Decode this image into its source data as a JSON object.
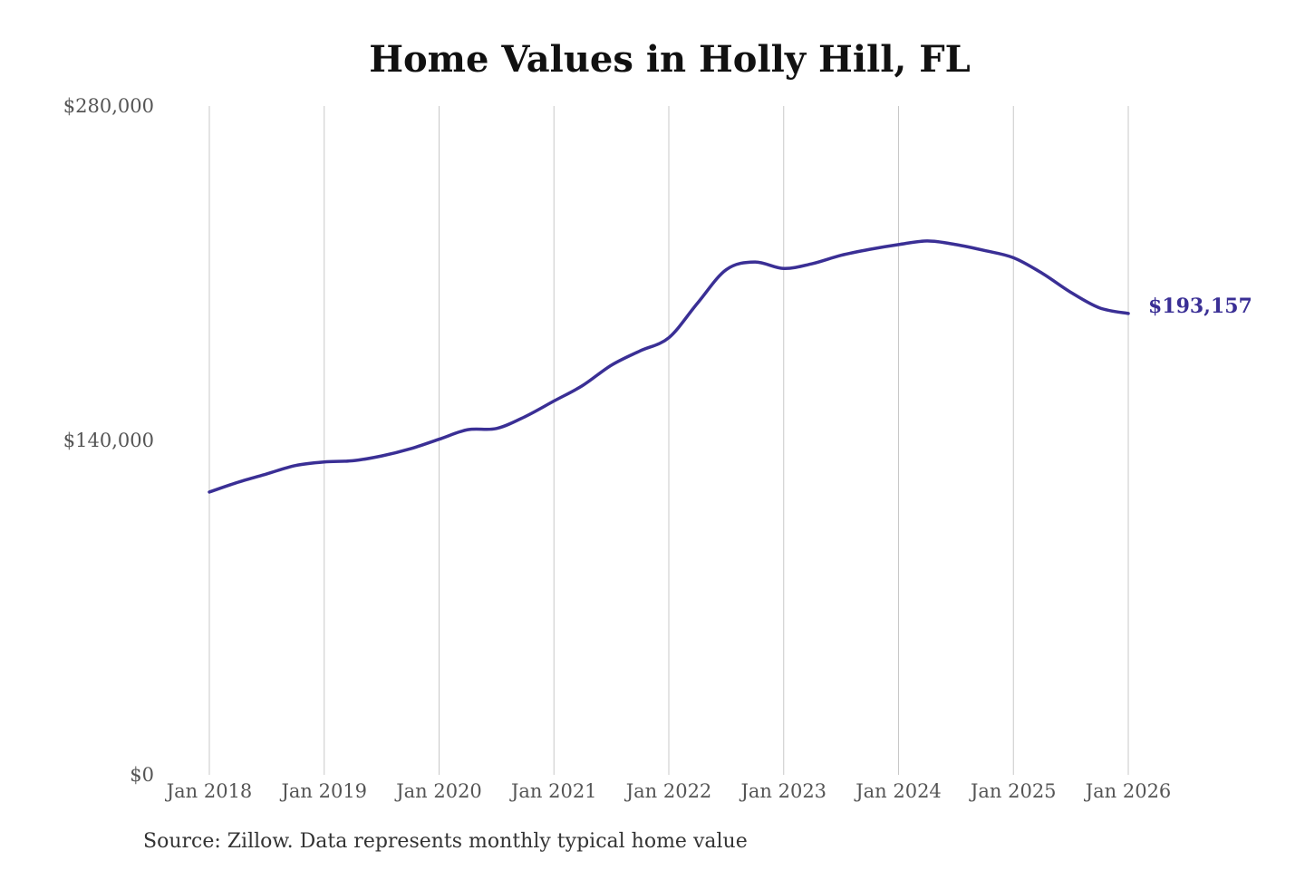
{
  "chart_data": {
    "type": "line",
    "title": "Home Values in Holly Hill, FL",
    "source": "Source: Zillow. Data represents monthly typical home value",
    "xlabel": "",
    "ylabel": "",
    "ylim": [
      0,
      280000
    ],
    "y_ticks": [
      "$0",
      "$140,000",
      "$280,000"
    ],
    "y_tick_values": [
      0,
      140000,
      280000
    ],
    "x_ticks": [
      "Jan 2018",
      "Jan 2019",
      "Jan 2020",
      "Jan 2021",
      "Jan 2022",
      "Jan 2023",
      "Jan 2024",
      "Jan 2025",
      "Jan 2026"
    ],
    "grid": "vertical",
    "line_color": "#3a2f95",
    "end_label": "$193,157",
    "x": [
      "2018-01",
      "2018-04",
      "2018-07",
      "2018-10",
      "2019-01",
      "2019-04",
      "2019-07",
      "2019-10",
      "2020-01",
      "2020-04",
      "2020-07",
      "2020-10",
      "2021-01",
      "2021-04",
      "2021-07",
      "2021-10",
      "2022-01",
      "2022-04",
      "2022-07",
      "2022-10",
      "2023-01",
      "2023-04",
      "2023-07",
      "2023-10",
      "2024-01",
      "2024-04",
      "2024-07",
      "2024-10",
      "2025-01",
      "2025-04",
      "2025-07",
      "2025-10",
      "2026-01"
    ],
    "values": [
      118400,
      122500,
      126000,
      129500,
      131000,
      131500,
      133500,
      136500,
      140500,
      144500,
      145000,
      150000,
      156500,
      163000,
      171500,
      177500,
      183000,
      197500,
      211500,
      214700,
      212000,
      214000,
      217500,
      220000,
      222000,
      223500,
      222000,
      219500,
      216500,
      210000,
      202000,
      195500,
      193157
    ]
  }
}
